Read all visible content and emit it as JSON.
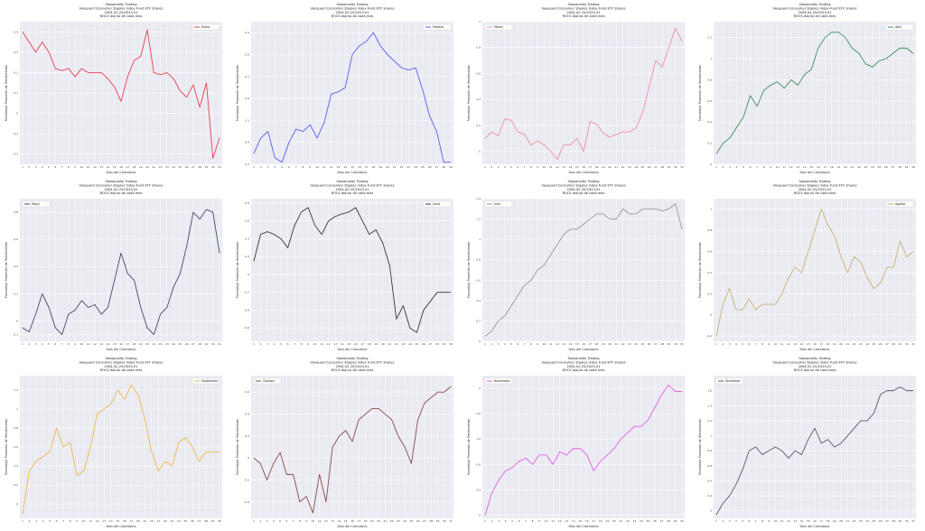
{
  "title_lines": [
    "Seasonality Trading",
    "Vanguard Consumer Staples Index Fund ETF Shares",
    "2004-02-25/2023-01",
    "ROCS dia(no de cada mes"
  ],
  "xlabel": "Días del Calendario",
  "ylabel": "Porcentaje Promedio de Rendimiento",
  "chart_data": [
    {
      "type": "line",
      "legend": "Enero",
      "legend_pos": "top-right",
      "color": "#e8414f",
      "x": [
        1,
        2,
        3,
        4,
        5,
        6,
        7,
        8,
        9,
        10,
        11,
        12,
        13,
        14,
        15,
        16,
        17,
        18,
        19,
        20,
        21,
        22,
        23,
        24,
        25,
        26,
        27,
        28,
        29,
        30,
        31
      ],
      "values": [
        0.4,
        0.35,
        0.3,
        0.35,
        0.3,
        0.22,
        0.21,
        0.22,
        0.18,
        0.22,
        0.2,
        0.2,
        0.2,
        0.17,
        0.13,
        0.06,
        0.18,
        0.26,
        0.28,
        0.41,
        0.2,
        0.19,
        0.2,
        0.17,
        0.11,
        0.08,
        0.14,
        0.03,
        0.15,
        -0.22,
        -0.12
      ],
      "ylim": [
        -0.25,
        0.45
      ],
      "yticks": [
        -0.2,
        -0.1,
        0,
        0.1,
        0.2,
        0.3,
        0.4
      ]
    },
    {
      "type": "line",
      "legend": "Febrero",
      "legend_pos": "top-right",
      "color": "#5560e8",
      "x": [
        1,
        2,
        3,
        4,
        5,
        6,
        7,
        8,
        9,
        10,
        11,
        12,
        13,
        14,
        15,
        16,
        17,
        18,
        19,
        20,
        21,
        22,
        23,
        24,
        25,
        26,
        27,
        28,
        29
      ],
      "values": [
        0.35,
        0.42,
        0.45,
        0.33,
        0.31,
        0.4,
        0.46,
        0.45,
        0.48,
        0.42,
        0.49,
        0.62,
        0.63,
        0.65,
        0.8,
        0.84,
        0.86,
        0.9,
        0.84,
        0.8,
        0.77,
        0.74,
        0.73,
        0.74,
        0.64,
        0.52,
        0.45,
        0.31,
        0.31
      ],
      "ylim": [
        0.3,
        0.95
      ],
      "yticks": [
        0.3,
        0.4,
        0.5,
        0.6,
        0.7,
        0.8,
        0.9
      ]
    },
    {
      "type": "line",
      "legend": "Marzo",
      "legend_pos": "top-left",
      "color": "#f08fa0",
      "x": [
        1,
        2,
        3,
        4,
        5,
        6,
        7,
        8,
        9,
        10,
        11,
        12,
        13,
        14,
        15,
        16,
        17,
        18,
        19,
        20,
        21,
        22,
        23,
        24,
        25,
        26,
        27,
        28,
        29,
        30,
        31
      ],
      "values": [
        0.1,
        0.15,
        0.12,
        0.25,
        0.24,
        0.15,
        0.13,
        0.05,
        0.08,
        0.05,
        0.0,
        -0.06,
        0.05,
        0.05,
        0.1,
        0.0,
        0.23,
        0.21,
        0.14,
        0.11,
        0.13,
        0.15,
        0.15,
        0.18,
        0.3,
        0.5,
        0.7,
        0.65,
        0.8,
        0.95,
        0.85
      ],
      "ylim": [
        -0.1,
        1.0
      ],
      "yticks": [
        0,
        0.2,
        0.4,
        0.6,
        0.8,
        1.0
      ]
    },
    {
      "type": "line",
      "legend": "Abril",
      "legend_pos": "top-right",
      "color": "#3f8f5f",
      "x": [
        1,
        2,
        3,
        4,
        5,
        6,
        7,
        8,
        9,
        10,
        11,
        12,
        13,
        14,
        15,
        16,
        17,
        18,
        19,
        20,
        21,
        22,
        23,
        24,
        25,
        26,
        27,
        28,
        29,
        30
      ],
      "values": [
        0.1,
        0.2,
        0.25,
        0.35,
        0.45,
        0.65,
        0.55,
        0.7,
        0.75,
        0.78,
        0.72,
        0.8,
        0.75,
        0.85,
        0.9,
        1.1,
        1.2,
        1.25,
        1.25,
        1.2,
        1.1,
        1.05,
        0.95,
        0.92,
        0.98,
        1.0,
        1.05,
        1.1,
        1.1,
        1.05
      ],
      "ylim": [
        0.0,
        1.35
      ],
      "yticks": [
        0,
        0.2,
        0.4,
        0.6,
        0.8,
        1.0,
        1.2
      ]
    },
    {
      "type": "line",
      "legend": "Mayo",
      "legend_pos": "top-left",
      "color": "#454a6a",
      "x": [
        1,
        2,
        3,
        4,
        5,
        6,
        7,
        8,
        9,
        10,
        11,
        12,
        13,
        14,
        15,
        16,
        17,
        18,
        19,
        20,
        21,
        22,
        23,
        24,
        25,
        26,
        27,
        28,
        29,
        30,
        31
      ],
      "values": [
        -0.05,
        -0.08,
        0.05,
        0.2,
        0.1,
        -0.05,
        -0.1,
        0.05,
        0.08,
        0.15,
        0.1,
        0.12,
        0.05,
        0.1,
        0.3,
        0.5,
        0.35,
        0.3,
        0.1,
        -0.05,
        -0.1,
        0.05,
        0.1,
        0.25,
        0.35,
        0.55,
        0.8,
        0.75,
        0.82,
        0.8,
        0.5
      ],
      "ylim": [
        -0.15,
        0.9
      ],
      "yticks": [
        -0.1,
        0,
        0.2,
        0.4,
        0.6,
        0.8
      ]
    },
    {
      "type": "line",
      "legend": "Junio",
      "legend_pos": "top-right",
      "color": "#3a3a3a",
      "x": [
        1,
        2,
        3,
        4,
        5,
        6,
        7,
        8,
        9,
        10,
        11,
        12,
        13,
        14,
        15,
        16,
        17,
        18,
        19,
        20,
        21,
        22,
        23,
        24,
        25,
        26,
        27,
        28,
        29,
        30
      ],
      "values": [
        0.15,
        0.45,
        0.48,
        0.45,
        0.4,
        0.3,
        0.55,
        0.7,
        0.75,
        0.55,
        0.45,
        0.6,
        0.65,
        0.68,
        0.7,
        0.75,
        0.6,
        0.45,
        0.5,
        0.35,
        0.1,
        -0.5,
        -0.35,
        -0.6,
        -0.65,
        -0.4,
        -0.3,
        -0.2,
        -0.2,
        -0.2
      ],
      "ylim": [
        -0.75,
        0.85
      ],
      "yticks": [
        -0.6,
        -0.4,
        -0.2,
        0,
        0.2,
        0.4,
        0.6,
        0.8
      ]
    },
    {
      "type": "line",
      "legend": "Julio",
      "legend_pos": "top-left",
      "color": "#9a9a9a",
      "x": [
        1,
        2,
        3,
        4,
        5,
        6,
        7,
        8,
        9,
        10,
        11,
        12,
        13,
        14,
        15,
        16,
        17,
        18,
        19,
        20,
        21,
        22,
        23,
        24,
        25,
        26,
        27,
        28,
        29,
        30,
        31
      ],
      "values": [
        0.05,
        0.1,
        0.2,
        0.25,
        0.35,
        0.45,
        0.55,
        0.6,
        0.7,
        0.75,
        0.85,
        0.95,
        1.05,
        1.1,
        1.1,
        1.15,
        1.2,
        1.25,
        1.25,
        1.2,
        1.2,
        1.3,
        1.25,
        1.25,
        1.3,
        1.3,
        1.3,
        1.28,
        1.3,
        1.35,
        1.1
      ],
      "ylim": [
        0.0,
        1.4
      ],
      "yticks": [
        0,
        0.2,
        0.4,
        0.6,
        0.8,
        1.0,
        1.2,
        1.4
      ]
    },
    {
      "type": "line",
      "legend": "Agosto",
      "legend_pos": "top-right",
      "color": "#c8b070",
      "x": [
        1,
        2,
        3,
        4,
        5,
        6,
        7,
        8,
        9,
        10,
        11,
        12,
        13,
        14,
        15,
        16,
        17,
        18,
        19,
        20,
        21,
        22,
        23,
        24,
        25,
        26,
        27,
        28,
        29,
        30,
        31
      ],
      "values": [
        -0.2,
        0.1,
        0.25,
        0.05,
        0.05,
        0.15,
        0.05,
        0.1,
        0.1,
        0.1,
        0.2,
        0.35,
        0.45,
        0.4,
        0.6,
        0.8,
        1.0,
        0.85,
        0.75,
        0.55,
        0.4,
        0.55,
        0.5,
        0.35,
        0.25,
        0.3,
        0.45,
        0.45,
        0.7,
        0.55,
        0.6
      ],
      "ylim": [
        -0.25,
        1.1
      ],
      "yticks": [
        -0.2,
        0,
        0.2,
        0.4,
        0.6,
        0.8,
        1.0
      ]
    },
    {
      "type": "line",
      "legend": "Septiembre",
      "legend_pos": "top-right",
      "color": "#f0b84a",
      "x": [
        1,
        2,
        3,
        4,
        5,
        6,
        7,
        8,
        9,
        10,
        11,
        12,
        13,
        14,
        15,
        16,
        17,
        18,
        19,
        20,
        21,
        22,
        23,
        24,
        25,
        26,
        27,
        28,
        29,
        30
      ],
      "values": [
        -0.1,
        0.35,
        0.45,
        0.5,
        0.55,
        0.8,
        0.6,
        0.65,
        0.3,
        0.35,
        0.6,
        0.95,
        1.0,
        1.05,
        1.2,
        1.1,
        1.25,
        1.15,
        0.9,
        0.55,
        0.35,
        0.45,
        0.4,
        0.65,
        0.7,
        0.6,
        0.45,
        0.55,
        0.55,
        0.55
      ],
      "ylim": [
        -0.15,
        1.35
      ],
      "yticks": [
        0,
        0.2,
        0.4,
        0.6,
        0.8,
        1.0,
        1.2
      ]
    },
    {
      "type": "line",
      "legend": "Octubre",
      "legend_pos": "top-left",
      "color": "#8a4a4a",
      "x": [
        1,
        2,
        3,
        4,
        5,
        6,
        7,
        8,
        9,
        10,
        11,
        12,
        13,
        14,
        15,
        16,
        17,
        18,
        19,
        20,
        21,
        22,
        23,
        24,
        25,
        26,
        27,
        28,
        29,
        30,
        31
      ],
      "values": [
        0.0,
        -0.05,
        -0.2,
        -0.05,
        0.05,
        -0.15,
        -0.15,
        -0.4,
        -0.35,
        -0.5,
        -0.15,
        -0.4,
        0.1,
        0.2,
        0.25,
        0.15,
        0.35,
        0.4,
        0.45,
        0.45,
        0.4,
        0.35,
        0.2,
        0.1,
        -0.05,
        0.35,
        0.5,
        0.55,
        0.6,
        0.6,
        0.65
      ],
      "ylim": [
        -0.55,
        0.75
      ],
      "yticks": [
        -0.4,
        -0.2,
        0,
        0.2,
        0.4,
        0.6
      ]
    },
    {
      "type": "line",
      "legend": "Noviembre",
      "legend_pos": "top-left",
      "color": "#e060e0",
      "x": [
        1,
        2,
        3,
        4,
        5,
        6,
        7,
        8,
        9,
        10,
        11,
        12,
        13,
        14,
        15,
        16,
        17,
        18,
        19,
        20,
        21,
        22,
        23,
        24,
        25,
        26,
        27,
        28,
        29,
        30
      ],
      "values": [
        0.0,
        0.35,
        0.55,
        0.7,
        0.75,
        0.85,
        0.9,
        0.8,
        0.95,
        0.95,
        0.8,
        1.0,
        0.95,
        1.05,
        1.05,
        0.95,
        0.7,
        0.85,
        0.95,
        1.05,
        1.2,
        1.3,
        1.4,
        1.4,
        1.5,
        1.7,
        1.9,
        2.05,
        1.95,
        1.95
      ],
      "ylim": [
        -0.05,
        2.2
      ],
      "yticks": [
        0,
        0.4,
        0.8,
        1.2,
        1.6,
        2.0
      ]
    },
    {
      "type": "line",
      "legend": "Diciembre",
      "legend_pos": "top-left",
      "color": "#5a5a6a",
      "x": [
        1,
        2,
        3,
        4,
        5,
        6,
        7,
        8,
        9,
        10,
        11,
        12,
        13,
        14,
        15,
        16,
        17,
        18,
        19,
        20,
        21,
        22,
        23,
        24,
        25,
        26,
        27,
        28,
        29,
        30,
        31
      ],
      "values": [
        -0.05,
        0.1,
        0.2,
        0.35,
        0.55,
        0.8,
        0.85,
        0.75,
        0.8,
        0.85,
        0.8,
        0.7,
        0.8,
        0.75,
        0.95,
        1.1,
        0.9,
        0.95,
        0.85,
        0.9,
        1.0,
        1.1,
        1.2,
        1.2,
        1.3,
        1.55,
        1.6,
        1.6,
        1.65,
        1.6,
        1.6
      ],
      "ylim": [
        -0.1,
        1.8
      ],
      "yticks": [
        0,
        0.2,
        0.4,
        0.6,
        0.8,
        1.0,
        1.2,
        1.4,
        1.6
      ]
    }
  ]
}
